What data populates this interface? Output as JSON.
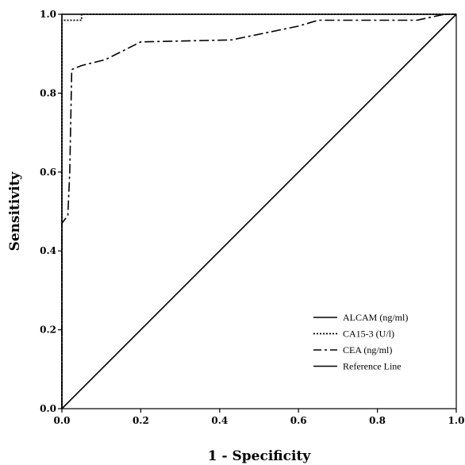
{
  "chart_data": {
    "type": "line",
    "title": "",
    "xlabel": "1 - Specificity",
    "ylabel": "Sensitivity",
    "xlim": [
      0,
      1
    ],
    "ylim": [
      0,
      1
    ],
    "x_ticks": [
      "0.0",
      "0.2",
      "0.4",
      "0.6",
      "0.8",
      "1.0"
    ],
    "y_ticks": [
      "0.0",
      "0.2",
      "0.4",
      "0.6",
      "0.8",
      "1.0"
    ],
    "grid": false,
    "legend_position": "bottom-right",
    "series": [
      {
        "name": "ALCAM (ng/ml)",
        "style": "solid",
        "points": [
          [
            0,
            0
          ],
          [
            0,
            1.0
          ],
          [
            1.0,
            1.0
          ]
        ]
      },
      {
        "name": "CA15-3 (U/l)",
        "style": "dotted",
        "points": [
          [
            0,
            0
          ],
          [
            0,
            0.985
          ],
          [
            0.05,
            0.985
          ],
          [
            0.05,
            1.0
          ],
          [
            1.0,
            1.0
          ]
        ]
      },
      {
        "name": "CEA (ng/ml)",
        "style": "dashdot",
        "points": [
          [
            0,
            0
          ],
          [
            0,
            0.47
          ],
          [
            0.015,
            0.49
          ],
          [
            0.02,
            0.6
          ],
          [
            0.025,
            0.86
          ],
          [
            0.05,
            0.87
          ],
          [
            0.11,
            0.885
          ],
          [
            0.2,
            0.93
          ],
          [
            0.43,
            0.935
          ],
          [
            0.6,
            0.97
          ],
          [
            0.65,
            0.985
          ],
          [
            0.9,
            0.985
          ],
          [
            0.97,
            1.0
          ],
          [
            1.0,
            1.0
          ]
        ]
      },
      {
        "name": "Reference Line",
        "style": "solid",
        "points": [
          [
            0,
            0
          ],
          [
            1.0,
            1.0
          ]
        ]
      }
    ]
  }
}
